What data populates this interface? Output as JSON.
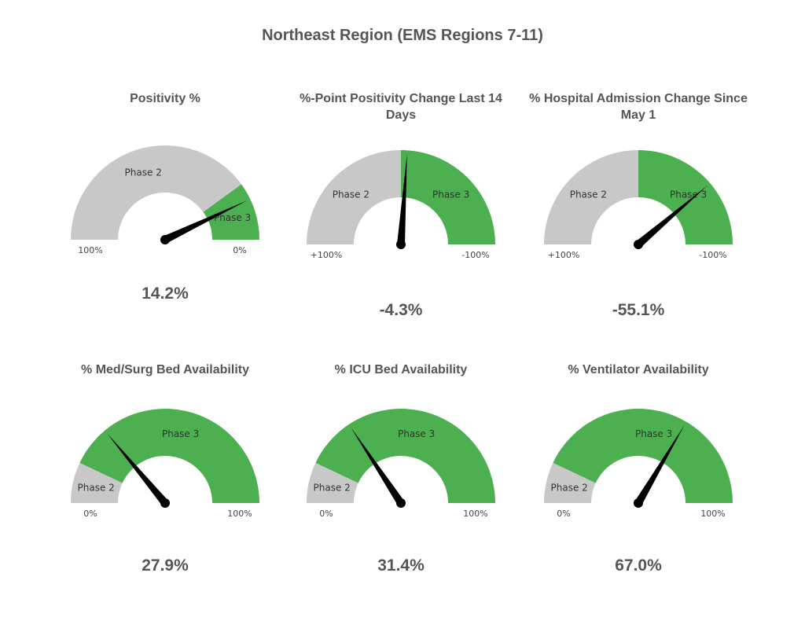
{
  "page": {
    "title": "Northeast Region (EMS Regions 7-11)"
  },
  "colors": {
    "phase2": "#c8c8c8",
    "phase3": "#4caf50",
    "needle": "#000000"
  },
  "chart_data": [
    {
      "type": "gauge",
      "title": "Positivity %",
      "value_label": "14.2%",
      "value": 14.2,
      "axis": {
        "left": 100,
        "right": 0,
        "left_label": "100%",
        "right_label": "0%"
      },
      "zones": [
        {
          "name": "Phase 2",
          "from": 100,
          "to": 20,
          "color": "#c8c8c8"
        },
        {
          "name": "Phase 3",
          "from": 20,
          "to": 0,
          "color": "#4caf50"
        }
      ]
    },
    {
      "type": "gauge",
      "title": "%-Point Positivity Change Last 14 Days",
      "value_label": "-4.3%",
      "value": -4.3,
      "axis": {
        "left": 100,
        "right": -100,
        "left_label": "+100%",
        "right_label": "-100%"
      },
      "zones": [
        {
          "name": "Phase 2",
          "from": 100,
          "to": 0,
          "color": "#c8c8c8"
        },
        {
          "name": "Phase 3",
          "from": 0,
          "to": -100,
          "color": "#4caf50"
        }
      ]
    },
    {
      "type": "gauge",
      "title": "% Hospital Admission Change Since May 1",
      "value_label": "-55.1%",
      "value": -55.1,
      "axis": {
        "left": 100,
        "right": -100,
        "left_label": "+100%",
        "right_label": "-100%"
      },
      "zones": [
        {
          "name": "Phase 2",
          "from": 100,
          "to": 0,
          "color": "#c8c8c8"
        },
        {
          "name": "Phase 3",
          "from": 0,
          "to": -100,
          "color": "#4caf50"
        }
      ]
    },
    {
      "type": "gauge",
      "title": "% Med/Surg Bed Availability",
      "value_label": "27.9%",
      "value": 27.9,
      "axis": {
        "left": 0,
        "right": 100,
        "left_label": "0%",
        "right_label": "100%"
      },
      "zones": [
        {
          "name": "Phase 2",
          "from": 0,
          "to": 14,
          "color": "#c8c8c8"
        },
        {
          "name": "Phase 3",
          "from": 14,
          "to": 100,
          "color": "#4caf50"
        }
      ]
    },
    {
      "type": "gauge",
      "title": "% ICU Bed Availability",
      "value_label": "31.4%",
      "value": 31.4,
      "axis": {
        "left": 0,
        "right": 100,
        "left_label": "0%",
        "right_label": "100%"
      },
      "zones": [
        {
          "name": "Phase 2",
          "from": 0,
          "to": 14,
          "color": "#c8c8c8"
        },
        {
          "name": "Phase 3",
          "from": 14,
          "to": 100,
          "color": "#4caf50"
        }
      ]
    },
    {
      "type": "gauge",
      "title": "% Ventilator Availability",
      "value_label": "67.0%",
      "value": 67.0,
      "axis": {
        "left": 0,
        "right": 100,
        "left_label": "0%",
        "right_label": "100%"
      },
      "zones": [
        {
          "name": "Phase 2",
          "from": 0,
          "to": 14,
          "color": "#c8c8c8"
        },
        {
          "name": "Phase 3",
          "from": 14,
          "to": 100,
          "color": "#4caf50"
        }
      ]
    }
  ]
}
